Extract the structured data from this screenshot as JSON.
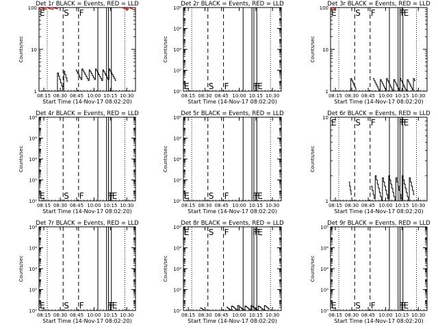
{
  "chart_data": [
    {
      "type": "line",
      "title": "Det 1r BLACK = Events, RED = LLD",
      "xlabel": "Start Time (14-Nov-17 08:02:20)",
      "ylabel": "Counts/sec",
      "yscale": "log",
      "ylim": [
        1,
        100
      ],
      "y_ticks": [
        {
          "v": 1,
          "label": "1"
        },
        {
          "v": 10,
          "label": "10"
        },
        {
          "v": 100,
          "label": "100"
        }
      ],
      "x_ticks": [
        "08:15",
        "08:30",
        "08:45",
        "10:00",
        "10:15",
        "10:30"
      ],
      "markers": [
        {
          "label": "E",
          "style": "dotted"
        },
        {
          "label": "S",
          "style": "dashed"
        },
        {
          "label": "F",
          "style": "dashed"
        },
        {
          "label": "",
          "style": "solid"
        },
        {
          "label": "",
          "style": "solid"
        },
        {
          "label": "",
          "style": "solid"
        },
        {
          "label": "",
          "style": "solid"
        },
        {
          "label": "",
          "style": "dotted"
        }
      ],
      "marker_label_pos": "top",
      "series": [
        {
          "name": "BLACK",
          "color": "#000000",
          "segments": [
            {
              "start": 0.18,
              "end": 0.3,
              "low": 1.0,
              "high": 3.0
            },
            {
              "start": 0.38,
              "end": 0.8,
              "low": 1.8,
              "high": 3.4
            }
          ]
        },
        {
          "name": "RED",
          "color": "#cc0000",
          "segments": [
            {
              "start": 0.0,
              "end": 0.2,
              "low": 90,
              "high": 100
            },
            {
              "start": 0.86,
              "end": 1.0,
              "low": 88,
              "high": 100
            }
          ]
        }
      ]
    },
    {
      "type": "line",
      "title": "Det 2r BLACK = Events, RED = LLD",
      "xlabel": "Start Time (14-Nov-17 08:02:20)",
      "ylabel": "Counts/sec",
      "yscale": "log",
      "ylim": [
        1,
        100000000
      ],
      "y_ticks": [
        {
          "v": 1,
          "label": "10⁰"
        },
        {
          "v": 100,
          "label": "10²"
        },
        {
          "v": 10000,
          "label": "10⁴"
        },
        {
          "v": 1000000,
          "label": "10⁶"
        },
        {
          "v": 100000000,
          "label": "10⁸"
        }
      ],
      "x_ticks": [
        "08:15",
        "08:30",
        "08:45",
        "10:00",
        "10:15",
        "10:30"
      ],
      "markers": [
        {
          "label": "E",
          "style": "dotted"
        },
        {
          "label": "S",
          "style": "dashed"
        },
        {
          "label": "F",
          "style": "dashed"
        },
        {
          "label": "",
          "style": "solid"
        },
        {
          "label": "F",
          "style": "solid"
        },
        {
          "label": "F",
          "style": "solid"
        },
        {
          "label": "E",
          "style": "solid"
        },
        {
          "label": "",
          "style": "dotted"
        }
      ],
      "marker_label_pos": "bottom",
      "series": [
        {
          "name": "BLACK",
          "color": "#000000",
          "segments": []
        }
      ]
    },
    {
      "type": "line",
      "title": "Det 3r BLACK = Events, RED = LLD",
      "xlabel": "Start Time (14-Nov-17 08:02:20)",
      "ylabel": "Counts/sec",
      "yscale": "log",
      "ylim": [
        1,
        100
      ],
      "y_ticks": [
        {
          "v": 1,
          "label": "1"
        },
        {
          "v": 10,
          "label": "10"
        },
        {
          "v": 100,
          "label": "100"
        }
      ],
      "x_ticks": [
        "08:15",
        "08:30",
        "08:45",
        "10:00",
        "10:15",
        "10:30"
      ],
      "markers": [
        {
          "label": "E",
          "style": "dotted"
        },
        {
          "label": "S",
          "style": "dashed"
        },
        {
          "label": "F",
          "style": "dashed"
        },
        {
          "label": "",
          "style": "solid"
        },
        {
          "label": "F",
          "style": "solid"
        },
        {
          "label": "F",
          "style": "solid"
        },
        {
          "label": "E",
          "style": "solid"
        },
        {
          "label": "",
          "style": "dotted"
        }
      ],
      "marker_label_pos": "top",
      "series": [
        {
          "name": "BLACK",
          "color": "#000000",
          "segments": [
            {
              "start": 0.2,
              "end": 0.27,
              "low": 1.0,
              "high": 2.0
            },
            {
              "start": 0.44,
              "end": 0.88,
              "low": 1.0,
              "high": 2.0
            }
          ]
        },
        {
          "name": "RED",
          "color": "#cc0000",
          "segments": [
            {
              "start": 0.0,
              "end": 0.06,
              "low": 85,
              "high": 100
            }
          ]
        }
      ]
    },
    {
      "type": "line",
      "title": "Det 4r BLACK = Events, RED = LLD",
      "xlabel": "Start Time (14-Nov-17 08:02:20)",
      "ylabel": "Counts/sec",
      "yscale": "log",
      "ylim": [
        1,
        100000000
      ],
      "y_ticks": [
        {
          "v": 1,
          "label": "10⁰"
        },
        {
          "v": 100,
          "label": "10²"
        },
        {
          "v": 10000,
          "label": "10⁴"
        },
        {
          "v": 1000000,
          "label": "10⁶"
        },
        {
          "v": 100000000,
          "label": "10⁸"
        }
      ],
      "x_ticks": [
        "08:15",
        "08:30",
        "08:45",
        "10:00",
        "10:15",
        "10:30"
      ],
      "markers": [
        {
          "label": "E",
          "style": "dotted"
        },
        {
          "label": "S",
          "style": "dashed"
        },
        {
          "label": "F",
          "style": "dashed"
        },
        {
          "label": "",
          "style": "solid"
        },
        {
          "label": "F",
          "style": "solid"
        },
        {
          "label": "F",
          "style": "solid"
        },
        {
          "label": "E",
          "style": "solid"
        },
        {
          "label": "",
          "style": "dotted"
        }
      ],
      "marker_label_pos": "bottom",
      "series": [
        {
          "name": "BLACK",
          "color": "#000000",
          "segments": []
        }
      ]
    },
    {
      "type": "line",
      "title": "Det 5r BLACK = Events, RED = LLD",
      "xlabel": "Start Time (14-Nov-17 08:02:20)",
      "ylabel": "Counts/sec",
      "yscale": "log",
      "ylim": [
        1,
        100000000
      ],
      "y_ticks": [
        {
          "v": 1,
          "label": "10⁰"
        },
        {
          "v": 100,
          "label": "10²"
        },
        {
          "v": 10000,
          "label": "10⁴"
        },
        {
          "v": 1000000,
          "label": "10⁶"
        },
        {
          "v": 100000000,
          "label": "10⁸"
        }
      ],
      "x_ticks": [
        "08:15",
        "08:30",
        "08:45",
        "10:00",
        "10:15",
        "10:30"
      ],
      "markers": [
        {
          "label": "E",
          "style": "dotted"
        },
        {
          "label": "S",
          "style": "dashed"
        },
        {
          "label": "F",
          "style": "dashed"
        },
        {
          "label": "",
          "style": "solid"
        },
        {
          "label": "F",
          "style": "solid"
        },
        {
          "label": "F",
          "style": "solid"
        },
        {
          "label": "E",
          "style": "solid"
        },
        {
          "label": "",
          "style": "dotted"
        }
      ],
      "marker_label_pos": "bottom",
      "series": [
        {
          "name": "BLACK",
          "color": "#000000",
          "segments": []
        }
      ]
    },
    {
      "type": "line",
      "title": "Det 6r BLACK = Events, RED = LLD",
      "xlabel": "Start Time (14-Nov-17 08:02:20)",
      "ylabel": "Counts/sec",
      "yscale": "log",
      "ylim": [
        1,
        10
      ],
      "y_ticks": [
        {
          "v": 1,
          "label": "1"
        },
        {
          "v": 10,
          "label": "10"
        }
      ],
      "x_ticks": [
        "08:15",
        "08:30",
        "08:45",
        "10:00",
        "10:15",
        "10:30"
      ],
      "markers": [
        {
          "label": "E",
          "style": "dotted"
        },
        {
          "label": "S",
          "style": "dashed"
        },
        {
          "label": "F",
          "style": "dashed"
        },
        {
          "label": "",
          "style": "solid"
        },
        {
          "label": "F",
          "style": "solid"
        },
        {
          "label": "F",
          "style": "solid"
        },
        {
          "label": "E",
          "style": "solid"
        },
        {
          "label": "",
          "style": "dotted"
        }
      ],
      "marker_label_pos": "top",
      "series": [
        {
          "name": "BLACK",
          "color": "#000000",
          "segments": [
            {
              "start": 0.19,
              "end": 0.22,
              "low": 1.0,
              "high": 2.0
            },
            {
              "start": 0.42,
              "end": 0.87,
              "low": 1.0,
              "high": 2.0
            }
          ]
        }
      ]
    },
    {
      "type": "line",
      "title": "Det 7r BLACK = Events, RED = LLD",
      "xlabel": "Start Time (14-Nov-17 08:02:20)",
      "ylabel": "Counts/sec",
      "yscale": "log",
      "ylim": [
        1,
        100000000
      ],
      "y_ticks": [
        {
          "v": 1,
          "label": "10⁰"
        },
        {
          "v": 100,
          "label": "10²"
        },
        {
          "v": 10000,
          "label": "10⁴"
        },
        {
          "v": 1000000,
          "label": "10⁶"
        },
        {
          "v": 100000000,
          "label": "10⁸"
        }
      ],
      "x_ticks": [
        "08:15",
        "08:30",
        "08:45",
        "10:00",
        "10:15",
        "10:30"
      ],
      "markers": [
        {
          "label": "E",
          "style": "dotted"
        },
        {
          "label": "S",
          "style": "dashed"
        },
        {
          "label": "F",
          "style": "dashed"
        },
        {
          "label": "",
          "style": "solid"
        },
        {
          "label": "F",
          "style": "solid"
        },
        {
          "label": "F",
          "style": "solid"
        },
        {
          "label": "E",
          "style": "solid"
        },
        {
          "label": "",
          "style": "dotted"
        }
      ],
      "marker_label_pos": "bottom",
      "series": [
        {
          "name": "BLACK",
          "color": "#000000",
          "segments": []
        }
      ]
    },
    {
      "type": "line",
      "title": "Det 8r BLACK = Events, RED = LLD",
      "xlabel": "Start Time (14-Nov-17 08:02:20)",
      "ylabel": "Counts/sec",
      "yscale": "log",
      "ylim": [
        1,
        100000000
      ],
      "y_ticks": [
        {
          "v": 1,
          "label": "10⁰"
        },
        {
          "v": 100,
          "label": "10²"
        },
        {
          "v": 10000,
          "label": "10⁴"
        },
        {
          "v": 1000000,
          "label": "10⁶"
        },
        {
          "v": 100000000,
          "label": "10⁸"
        }
      ],
      "x_ticks": [
        "08:15",
        "08:30",
        "08:45",
        "10:00",
        "10:15",
        "10:30"
      ],
      "markers": [
        {
          "label": "E",
          "style": "dotted"
        },
        {
          "label": "S",
          "style": "dashed"
        },
        {
          "label": "F",
          "style": "dashed"
        },
        {
          "label": "",
          "style": "solid"
        },
        {
          "label": "F",
          "style": "solid"
        },
        {
          "label": "F",
          "style": "solid"
        },
        {
          "label": "E",
          "style": "solid"
        },
        {
          "label": "",
          "style": "dotted"
        }
      ],
      "marker_label_pos": "top",
      "series": [
        {
          "name": "BLACK",
          "color": "#000000",
          "segments": [
            {
              "start": 0.17,
              "end": 0.21,
              "low": 1.0,
              "high": 2.0
            },
            {
              "start": 0.44,
              "end": 0.88,
              "low": 1.0,
              "high": 3.0
            }
          ]
        }
      ]
    },
    {
      "type": "line",
      "title": "Det 9r BLACK = Events, RED = LLD",
      "xlabel": "Start Time (14-Nov-17 08:02:20)",
      "ylabel": "Counts/sec",
      "yscale": "log",
      "ylim": [
        1,
        100000000
      ],
      "y_ticks": [
        {
          "v": 1,
          "label": "10⁰"
        },
        {
          "v": 100,
          "label": "10²"
        },
        {
          "v": 10000,
          "label": "10⁴"
        },
        {
          "v": 1000000,
          "label": "10⁶"
        },
        {
          "v": 100000000,
          "label": "10⁸"
        }
      ],
      "x_ticks": [
        "08:15",
        "08:30",
        "08:45",
        "10:00",
        "10:15",
        "10:30"
      ],
      "markers": [
        {
          "label": "E",
          "style": "dotted"
        },
        {
          "label": "S",
          "style": "dashed"
        },
        {
          "label": "F",
          "style": "dashed"
        },
        {
          "label": "",
          "style": "solid"
        },
        {
          "label": "F",
          "style": "solid"
        },
        {
          "label": "F",
          "style": "solid"
        },
        {
          "label": "E",
          "style": "solid"
        },
        {
          "label": "",
          "style": "dotted"
        }
      ],
      "marker_label_pos": "bottom",
      "series": [
        {
          "name": "BLACK",
          "color": "#000000",
          "segments": []
        }
      ]
    }
  ]
}
